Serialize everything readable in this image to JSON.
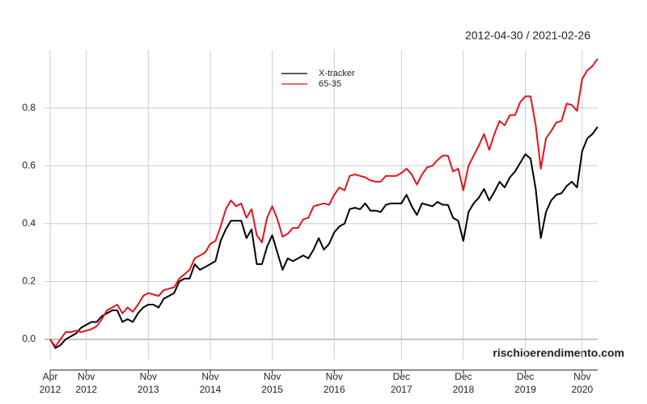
{
  "chart_data": {
    "type": "line",
    "title": "2012-04-30 / 2021-02-26",
    "watermark": "rischioerendimento.com",
    "x": [
      "2012-04",
      "2012-05",
      "2012-06",
      "2012-07",
      "2012-08",
      "2012-09",
      "2012-10",
      "2012-11",
      "2012-12",
      "2013-01",
      "2013-02",
      "2013-03",
      "2013-04",
      "2013-05",
      "2013-06",
      "2013-07",
      "2013-08",
      "2013-09",
      "2013-10",
      "2013-11",
      "2013-12",
      "2014-01",
      "2014-02",
      "2014-03",
      "2014-04",
      "2014-05",
      "2014-06",
      "2014-07",
      "2014-08",
      "2014-09",
      "2014-10",
      "2014-11",
      "2014-12",
      "2015-01",
      "2015-02",
      "2015-03",
      "2015-04",
      "2015-05",
      "2015-06",
      "2015-07",
      "2015-08",
      "2015-09",
      "2015-10",
      "2015-11",
      "2015-12",
      "2016-01",
      "2016-02",
      "2016-03",
      "2016-04",
      "2016-05",
      "2016-06",
      "2016-07",
      "2016-08",
      "2016-09",
      "2016-10",
      "2016-11",
      "2016-12",
      "2017-01",
      "2017-02",
      "2017-03",
      "2017-04",
      "2017-05",
      "2017-06",
      "2017-07",
      "2017-08",
      "2017-09",
      "2017-10",
      "2017-11",
      "2017-12",
      "2018-01",
      "2018-02",
      "2018-03",
      "2018-04",
      "2018-05",
      "2018-06",
      "2018-07",
      "2018-08",
      "2018-09",
      "2018-10",
      "2018-11",
      "2018-12",
      "2019-01",
      "2019-02",
      "2019-03",
      "2019-04",
      "2019-05",
      "2019-06",
      "2019-07",
      "2019-08",
      "2019-09",
      "2019-10",
      "2019-11",
      "2019-12",
      "2020-01",
      "2020-02",
      "2020-03",
      "2020-04",
      "2020-05",
      "2020-06",
      "2020-07",
      "2020-08",
      "2020-09",
      "2020-10",
      "2020-11",
      "2020-12",
      "2021-01",
      "2021-02"
    ],
    "series": [
      {
        "name": "X-tracker",
        "color": "#000000",
        "values": [
          0,
          -0.03,
          -0.02,
          0,
          0.01,
          0.02,
          0.04,
          0.05,
          0.06,
          0.06,
          0.08,
          0.09,
          0.1,
          0.1,
          0.06,
          0.07,
          0.06,
          0.09,
          0.11,
          0.12,
          0.12,
          0.11,
          0.14,
          0.15,
          0.16,
          0.2,
          0.21,
          0.21,
          0.26,
          0.24,
          0.25,
          0.26,
          0.27,
          0.34,
          0.38,
          0.41,
          0.41,
          0.41,
          0.35,
          0.38,
          0.26,
          0.26,
          0.32,
          0.36,
          0.3,
          0.24,
          0.28,
          0.27,
          0.28,
          0.29,
          0.28,
          0.31,
          0.35,
          0.31,
          0.33,
          0.37,
          0.39,
          0.4,
          0.45,
          0.455,
          0.45,
          0.47,
          0.445,
          0.445,
          0.44,
          0.465,
          0.47,
          0.47,
          0.47,
          0.5,
          0.46,
          0.43,
          0.47,
          0.465,
          0.46,
          0.475,
          0.465,
          0.465,
          0.42,
          0.41,
          0.34,
          0.44,
          0.47,
          0.49,
          0.52,
          0.48,
          0.51,
          0.545,
          0.525,
          0.56,
          0.58,
          0.61,
          0.64,
          0.625,
          0.52,
          0.35,
          0.44,
          0.48,
          0.5,
          0.505,
          0.53,
          0.545,
          0.525,
          0.65,
          0.695,
          0.71,
          0.735
        ]
      },
      {
        "name": "65-35",
        "color": "#e3131b",
        "values": [
          0,
          -0.025,
          0,
          0.025,
          0.025,
          0.03,
          0.025,
          0.03,
          0.035,
          0.045,
          0.07,
          0.1,
          0.11,
          0.12,
          0.09,
          0.11,
          0.095,
          0.12,
          0.15,
          0.16,
          0.155,
          0.15,
          0.17,
          0.175,
          0.18,
          0.21,
          0.225,
          0.24,
          0.28,
          0.29,
          0.3,
          0.33,
          0.34,
          0.39,
          0.45,
          0.48,
          0.46,
          0.47,
          0.42,
          0.45,
          0.36,
          0.335,
          0.42,
          0.46,
          0.415,
          0.355,
          0.365,
          0.385,
          0.385,
          0.415,
          0.42,
          0.46,
          0.465,
          0.47,
          0.465,
          0.5,
          0.525,
          0.515,
          0.565,
          0.57,
          0.565,
          0.56,
          0.55,
          0.545,
          0.545,
          0.565,
          0.565,
          0.565,
          0.575,
          0.59,
          0.57,
          0.535,
          0.57,
          0.595,
          0.6,
          0.62,
          0.635,
          0.635,
          0.58,
          0.59,
          0.515,
          0.6,
          0.635,
          0.67,
          0.71,
          0.655,
          0.71,
          0.755,
          0.74,
          0.775,
          0.775,
          0.82,
          0.84,
          0.84,
          0.74,
          0.59,
          0.695,
          0.72,
          0.75,
          0.755,
          0.815,
          0.81,
          0.79,
          0.9,
          0.93,
          0.945,
          0.97
        ]
      }
    ],
    "xticks": [
      {
        "value": "2012-04",
        "label": "Apr 2012"
      },
      {
        "value": "2012-11",
        "label": "Nov 2012"
      },
      {
        "value": "2013-11",
        "label": "Nov 2013"
      },
      {
        "value": "2014-11",
        "label": "Nov 2014"
      },
      {
        "value": "2015-11",
        "label": "Nov 2015"
      },
      {
        "value": "2016-11",
        "label": "Nov 2016"
      },
      {
        "value": "2017-12",
        "label": "Dec 2017"
      },
      {
        "value": "2018-12",
        "label": "Dec 2018"
      },
      {
        "value": "2019-12",
        "label": "Dec 2019"
      },
      {
        "value": "2020-11",
        "label": "Nov 2020"
      }
    ],
    "ylim": [
      -0.07,
      1.0
    ],
    "yticks": [
      {
        "value": 0,
        "label": "0.0"
      },
      0.2,
      0.4,
      0.6,
      0.8
    ],
    "grid": true,
    "legend": "top"
  }
}
